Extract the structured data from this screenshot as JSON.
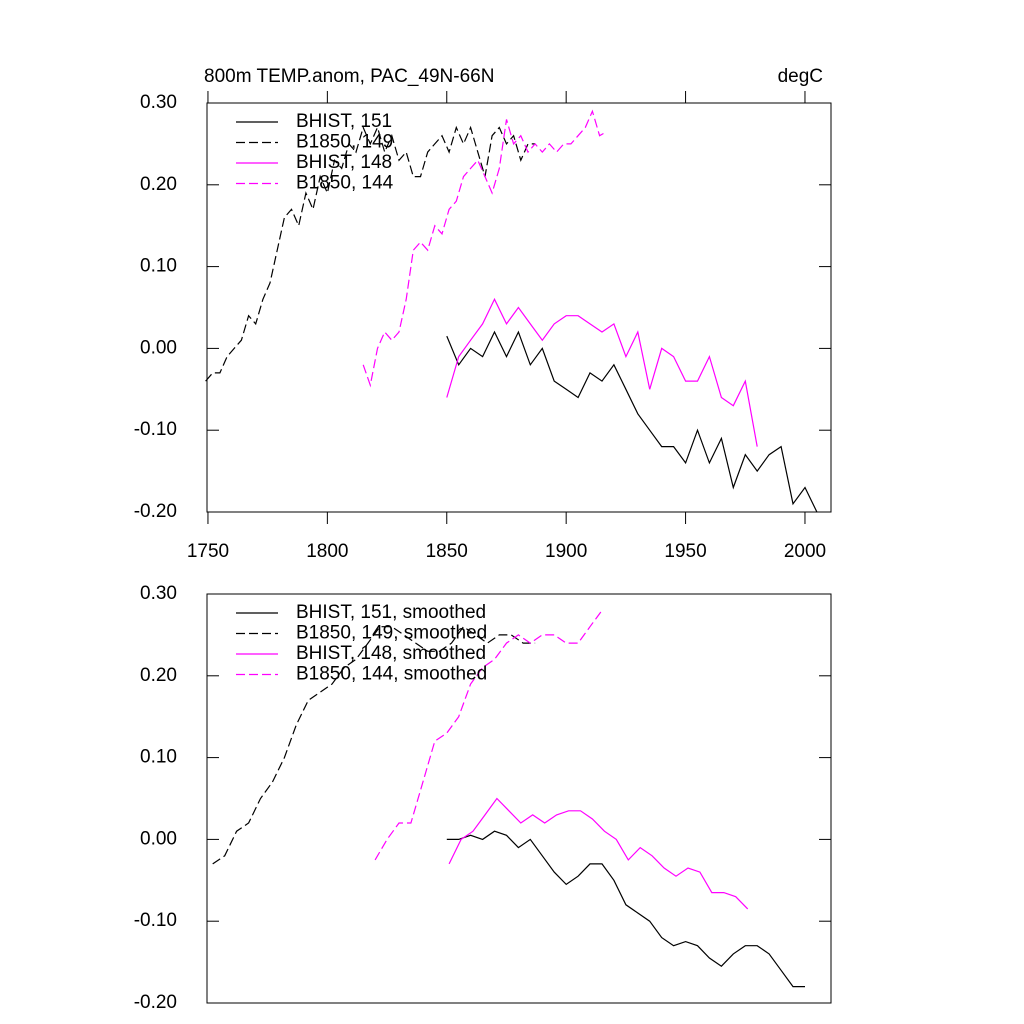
{
  "chart_data": [
    {
      "type": "line",
      "title": "800m TEMP.anom, PAC_49N-66N",
      "unit_label": "degC",
      "legend": "upper left",
      "xlim": [
        1749.6,
        2010.9
      ],
      "xticks": [
        1750,
        1800,
        1850,
        1900,
        1950,
        2000
      ],
      "ylim": [
        -0.2,
        0.3
      ],
      "yticks": [
        {
          "value": 0.3,
          "label": "0.30"
        },
        {
          "value": 0.2,
          "label": "0.20"
        },
        {
          "value": 0.1,
          "label": "0.10"
        },
        {
          "value": 0,
          "label": "0.00"
        },
        {
          "value": -0.1,
          "label": "-0.10"
        },
        {
          "value": -0.2,
          "label": "-0.20"
        }
      ],
      "series": [
        {
          "name": "BHIST, 151",
          "color": "#000000",
          "dash": "solid",
          "x": [
            1850,
            1855,
            1860,
            1865,
            1870,
            1875,
            1880,
            1885,
            1890,
            1895,
            1900,
            1905,
            1910,
            1915,
            1920,
            1925,
            1930,
            1935,
            1940,
            1945,
            1950,
            1955,
            1960,
            1965,
            1970,
            1975,
            1980,
            1985,
            1990,
            1995,
            2000,
            2005
          ],
          "values": [
            0.015,
            -0.02,
            0.0,
            -0.01,
            0.02,
            -0.01,
            0.02,
            -0.02,
            0.0,
            -0.04,
            -0.05,
            -0.06,
            -0.03,
            -0.04,
            -0.02,
            -0.05,
            -0.08,
            -0.1,
            -0.12,
            -0.12,
            -0.14,
            -0.1,
            -0.14,
            -0.11,
            -0.17,
            -0.13,
            -0.15,
            -0.13,
            -0.12,
            -0.19,
            -0.17,
            -0.2
          ]
        },
        {
          "name": "B1850, 149",
          "color": "#000000",
          "dash": "dashed",
          "x": [
            1749,
            1752,
            1755,
            1758,
            1761,
            1764,
            1767,
            1770,
            1773,
            1776,
            1779,
            1782,
            1785,
            1788,
            1791,
            1794,
            1797,
            1800,
            1803,
            1806,
            1809,
            1812,
            1815,
            1818,
            1821,
            1824,
            1827,
            1830,
            1833,
            1836,
            1839,
            1842,
            1845,
            1848,
            1851,
            1854,
            1857,
            1860,
            1863,
            1866,
            1869,
            1872,
            1875,
            1878,
            1881,
            1884,
            1887
          ],
          "values": [
            -0.04,
            -0.03,
            -0.03,
            -0.01,
            0.0,
            0.01,
            0.04,
            0.03,
            0.06,
            0.08,
            0.12,
            0.16,
            0.17,
            0.15,
            0.19,
            0.17,
            0.21,
            0.19,
            0.23,
            0.22,
            0.25,
            0.24,
            0.27,
            0.25,
            0.27,
            0.24,
            0.26,
            0.23,
            0.24,
            0.21,
            0.21,
            0.24,
            0.25,
            0.26,
            0.24,
            0.27,
            0.25,
            0.27,
            0.24,
            0.21,
            0.26,
            0.27,
            0.25,
            0.26,
            0.23,
            0.25,
            0.25
          ]
        },
        {
          "name": "BHIST, 148",
          "color": "#ff00ff",
          "dash": "solid",
          "x": [
            1850,
            1855,
            1860,
            1865,
            1870,
            1875,
            1880,
            1885,
            1890,
            1895,
            1900,
            1905,
            1910,
            1915,
            1920,
            1925,
            1930,
            1935,
            1940,
            1945,
            1950,
            1955,
            1960,
            1965,
            1970,
            1975,
            1980
          ],
          "values": [
            -0.06,
            -0.01,
            0.01,
            0.03,
            0.06,
            0.03,
            0.05,
            0.03,
            0.01,
            0.03,
            0.04,
            0.04,
            0.03,
            0.02,
            0.03,
            -0.01,
            0.02,
            -0.05,
            0.0,
            -0.01,
            -0.04,
            -0.04,
            -0.01,
            -0.06,
            -0.07,
            -0.04,
            -0.12
          ]
        },
        {
          "name": "B1850, 144",
          "color": "#ff00ff",
          "dash": "dashed",
          "x": [
            1815,
            1818,
            1821,
            1824,
            1827,
            1830,
            1833,
            1836,
            1839,
            1842,
            1845,
            1848,
            1851,
            1854,
            1857,
            1860,
            1863,
            1866,
            1869,
            1872,
            1875,
            1878,
            1881,
            1884,
            1887,
            1890,
            1893,
            1896,
            1899,
            1902,
            1905,
            1908,
            1911,
            1914,
            1917
          ],
          "values": [
            -0.02,
            -0.045,
            0.0,
            0.02,
            0.01,
            0.02,
            0.06,
            0.12,
            0.13,
            0.12,
            0.15,
            0.14,
            0.17,
            0.18,
            0.21,
            0.22,
            0.23,
            0.21,
            0.19,
            0.22,
            0.28,
            0.25,
            0.26,
            0.24,
            0.25,
            0.24,
            0.25,
            0.24,
            0.25,
            0.25,
            0.26,
            0.27,
            0.29,
            0.26,
            0.265
          ]
        }
      ]
    },
    {
      "type": "line",
      "legend": "upper left",
      "xlim": [
        1749.6,
        2010.9
      ],
      "ylim": [
        -0.2,
        0.3
      ],
      "yticks": [
        {
          "value": 0.3,
          "label": "0.30"
        },
        {
          "value": 0.2,
          "label": "0.20"
        },
        {
          "value": 0.1,
          "label": "0.10"
        },
        {
          "value": 0,
          "label": "0.00"
        },
        {
          "value": -0.1,
          "label": "-0.10"
        },
        {
          "value": -0.2,
          "label": "-0.20"
        }
      ],
      "series": [
        {
          "name": "BHIST, 151, smoothed",
          "color": "#000000",
          "dash": "solid",
          "x": [
            1850,
            1855,
            1860,
            1865,
            1870,
            1875,
            1880,
            1885,
            1890,
            1895,
            1900,
            1905,
            1910,
            1915,
            1920,
            1925,
            1930,
            1935,
            1940,
            1945,
            1950,
            1955,
            1960,
            1965,
            1970,
            1975,
            1980,
            1985,
            1990,
            1995,
            2000
          ],
          "values": [
            0.0,
            0.0,
            0.005,
            0.0,
            0.01,
            0.005,
            -0.01,
            0.0,
            -0.02,
            -0.04,
            -0.055,
            -0.045,
            -0.03,
            -0.03,
            -0.05,
            -0.08,
            -0.09,
            -0.1,
            -0.12,
            -0.13,
            -0.125,
            -0.13,
            -0.145,
            -0.155,
            -0.14,
            -0.13,
            -0.13,
            -0.14,
            -0.16,
            -0.18,
            -0.18
          ]
        },
        {
          "name": "B1850, 149, smoothed",
          "color": "#000000",
          "dash": "dashed",
          "x": [
            1752,
            1757,
            1762,
            1767,
            1772,
            1777,
            1782,
            1787,
            1792,
            1797,
            1802,
            1807,
            1812,
            1817,
            1822,
            1827,
            1832,
            1837,
            1842,
            1847,
            1852,
            1857,
            1862,
            1867,
            1872,
            1877,
            1882,
            1887
          ],
          "values": [
            -0.03,
            -0.02,
            0.01,
            0.02,
            0.05,
            0.07,
            0.1,
            0.14,
            0.17,
            0.18,
            0.19,
            0.21,
            0.22,
            0.24,
            0.26,
            0.26,
            0.25,
            0.24,
            0.23,
            0.23,
            0.24,
            0.26,
            0.25,
            0.24,
            0.25,
            0.25,
            0.24,
            0.24
          ]
        },
        {
          "name": "BHIST, 148, smoothed",
          "color": "#ff00ff",
          "dash": "solid",
          "x": [
            1851,
            1856,
            1861,
            1866,
            1871,
            1876,
            1881,
            1886,
            1891,
            1896,
            1901,
            1906,
            1911,
            1916,
            1921,
            1926,
            1931,
            1936,
            1941,
            1946,
            1951,
            1956,
            1961,
            1966,
            1971,
            1976
          ],
          "values": [
            -0.03,
            0.0,
            0.01,
            0.03,
            0.05,
            0.035,
            0.02,
            0.03,
            0.02,
            0.03,
            0.035,
            0.035,
            0.025,
            0.01,
            0.0,
            -0.025,
            -0.01,
            -0.02,
            -0.035,
            -0.045,
            -0.035,
            -0.04,
            -0.065,
            -0.065,
            -0.07,
            -0.085
          ]
        },
        {
          "name": "B1850, 144, smoothed",
          "color": "#ff00ff",
          "dash": "dashed",
          "x": [
            1820,
            1825,
            1830,
            1835,
            1840,
            1845,
            1850,
            1855,
            1860,
            1865,
            1870,
            1875,
            1880,
            1885,
            1890,
            1895,
            1900,
            1905,
            1910,
            1915
          ],
          "values": [
            -0.025,
            0.0,
            0.02,
            0.02,
            0.07,
            0.12,
            0.13,
            0.15,
            0.19,
            0.21,
            0.22,
            0.24,
            0.25,
            0.24,
            0.25,
            0.25,
            0.24,
            0.24,
            0.26,
            0.28
          ]
        }
      ]
    }
  ]
}
